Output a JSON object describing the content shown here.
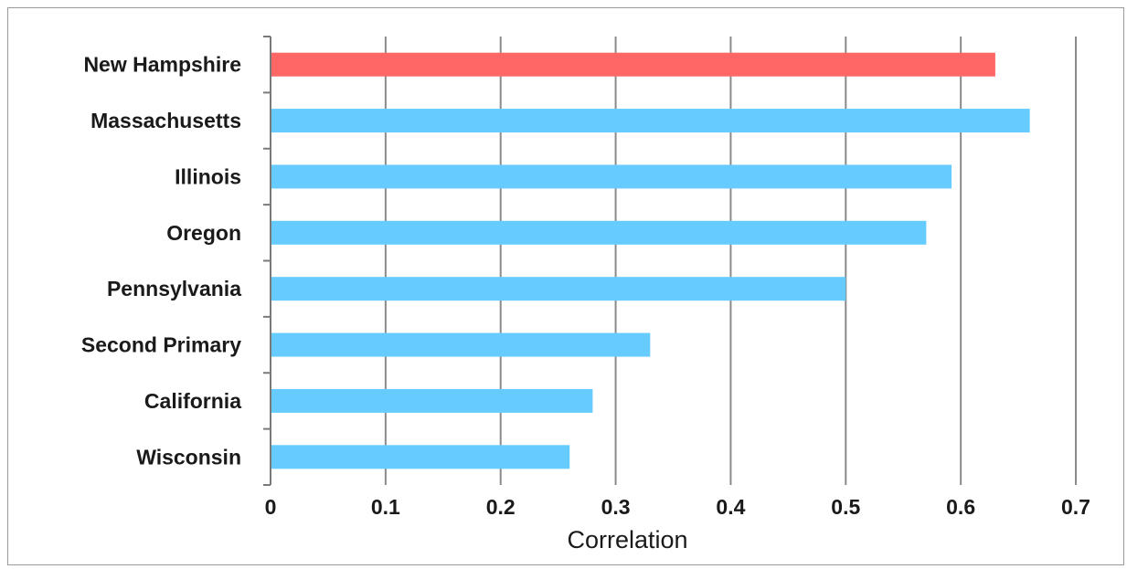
{
  "chart_data": {
    "type": "bar",
    "orientation": "horizontal",
    "categories": [
      "New Hampshire",
      "Massachusetts",
      "Illinois",
      "Oregon",
      "Pennsylvania",
      "Second Primary",
      "California",
      "Wisconsin"
    ],
    "values": [
      0.63,
      0.66,
      0.592,
      0.57,
      0.5,
      0.33,
      0.28,
      0.26
    ],
    "bar_colors": [
      "#ff6666",
      "#66ccff",
      "#66ccff",
      "#66ccff",
      "#66ccff",
      "#66ccff",
      "#66ccff",
      "#66ccff"
    ],
    "title": "",
    "xlabel": "Correlation",
    "ylabel": "",
    "xlim": [
      0,
      0.7
    ],
    "xticks": [
      "0",
      "0.1",
      "0.2",
      "0.3",
      "0.4",
      "0.5",
      "0.6",
      "0.7"
    ],
    "grid": "vertical"
  }
}
